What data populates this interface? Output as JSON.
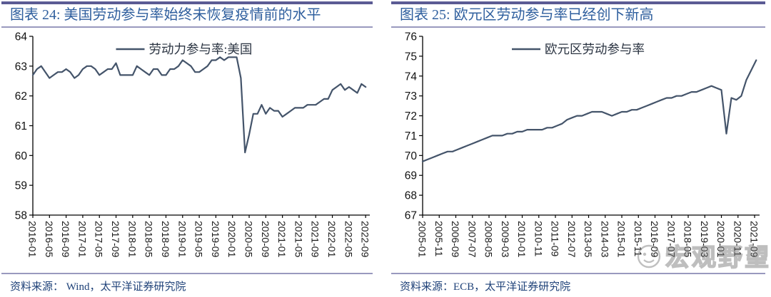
{
  "watermark": {
    "text": "宏观野望",
    "icon": "smiley-face-logo-icon"
  },
  "panels": [
    {
      "title": "图表 24: 美国劳动参与率始终未恢复疫情前的水平",
      "source": "资料来源：  Wind，太平洋证券研究院",
      "chart_data": {
        "type": "line",
        "title": "图表 24: 美国劳动参与率始终未恢复疫情前的水平",
        "legend": "劳动力参与率:美国",
        "legend_position": "top-center",
        "line_color": "#44546A",
        "grid": false,
        "ylim": [
          58,
          64
        ],
        "ytick_step": 1,
        "x_tick_labels": [
          "2016-01",
          "2016-05",
          "2016-09",
          "2017-01",
          "2017-05",
          "2017-09",
          "2018-01",
          "2018-05",
          "2018-09",
          "2019-01",
          "2019-05",
          "2019-09",
          "2020-01",
          "2020-05",
          "2020-09",
          "2021-01",
          "2021-05",
          "2021-09",
          "2022-01",
          "2022-05",
          "2022-09"
        ],
        "x_tick_step_months": 4,
        "x_point_step_months": 1,
        "x_axis_span_months": 81,
        "x_start": "2016-01",
        "x_end": "2022-09",
        "values": [
          62.7,
          62.9,
          63.0,
          62.8,
          62.6,
          62.7,
          62.8,
          62.8,
          62.9,
          62.8,
          62.6,
          62.7,
          62.9,
          63.0,
          63.0,
          62.9,
          62.7,
          62.8,
          62.9,
          62.9,
          63.1,
          62.7,
          62.7,
          62.7,
          62.7,
          63.0,
          62.9,
          62.8,
          62.7,
          62.9,
          62.9,
          62.7,
          62.7,
          62.9,
          62.9,
          63.0,
          63.2,
          63.1,
          63.0,
          62.8,
          62.8,
          62.9,
          63.0,
          63.2,
          63.2,
          63.3,
          63.2,
          63.3,
          63.3,
          63.3,
          62.6,
          60.1,
          60.7,
          61.4,
          61.4,
          61.7,
          61.4,
          61.6,
          61.5,
          61.5,
          61.3,
          61.4,
          61.5,
          61.6,
          61.6,
          61.6,
          61.7,
          61.7,
          61.7,
          61.8,
          61.9,
          61.9,
          62.2,
          62.3,
          62.4,
          62.2,
          62.3,
          62.2,
          62.1,
          62.4,
          62.3
        ]
      }
    },
    {
      "title": "图表 25: 欧元区劳动参与率已经创下新高",
      "source": "资料来源：ECB，太平洋证券研究院",
      "chart_data": {
        "type": "line",
        "title": "图表 25: 欧元区劳动参与率已经创下新高",
        "legend": "欧元区劳动参与率",
        "legend_position": "top-center",
        "line_color": "#44546A",
        "grid": false,
        "ylim": [
          67,
          76
        ],
        "ytick_step": 1,
        "x_tick_labels": [
          "2005-01",
          "2005-11",
          "2006-09",
          "2007-07",
          "2008-05",
          "2009-03",
          "2010-01",
          "2010-11",
          "2011-09",
          "2012-07",
          "2013-05",
          "2014-03",
          "2015-01",
          "2015-11",
          "2016-09",
          "2017-07",
          "2018-05",
          "2019-03",
          "2020-01",
          "2020-11",
          "2021-09"
        ],
        "x_tick_step_months": 10,
        "x_point_step_months": 3,
        "x_axis_span_months": 203,
        "x_start": "2005-01",
        "x_end": "2021-12",
        "values": [
          69.7,
          69.8,
          69.9,
          70.0,
          70.1,
          70.2,
          70.2,
          70.3,
          70.4,
          70.5,
          70.6,
          70.7,
          70.8,
          70.9,
          71.0,
          71.0,
          71.0,
          71.1,
          71.1,
          71.2,
          71.2,
          71.3,
          71.3,
          71.3,
          71.3,
          71.4,
          71.4,
          71.5,
          71.6,
          71.8,
          71.9,
          72.0,
          72.0,
          72.1,
          72.2,
          72.2,
          72.2,
          72.1,
          72.0,
          72.1,
          72.2,
          72.2,
          72.3,
          72.3,
          72.4,
          72.5,
          72.6,
          72.7,
          72.8,
          72.9,
          72.9,
          73.0,
          73.0,
          73.1,
          73.2,
          73.2,
          73.3,
          73.4,
          73.5,
          73.4,
          73.3,
          71.1,
          72.9,
          72.8,
          73.0,
          73.8,
          74.3,
          74.8
        ]
      }
    }
  ]
}
